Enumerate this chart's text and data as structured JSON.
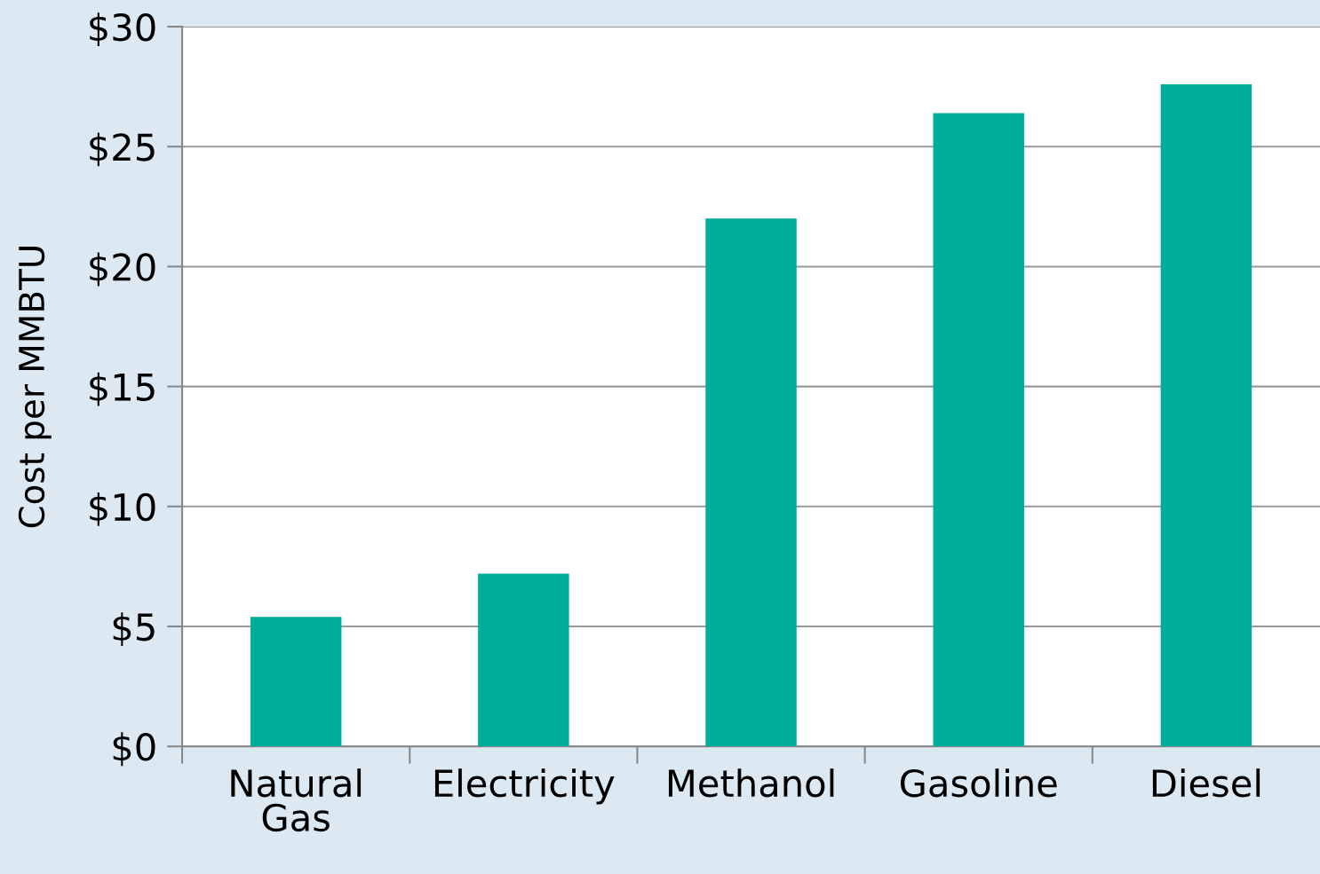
{
  "chart_data": {
    "type": "bar",
    "ylabel": "Cost per MMBTU",
    "categories": [
      "Natural\nGas",
      "Electricity",
      "Methanol",
      "Gasoline",
      "Diesel"
    ],
    "values": [
      5.4,
      7.2,
      22.0,
      26.4,
      27.6
    ],
    "color": "#00ad9c",
    "ylim": [
      0,
      30
    ],
    "yticks": [
      {
        "value": 0,
        "label": "$0"
      },
      {
        "value": 5,
        "label": "$5"
      },
      {
        "value": 10,
        "label": "$10"
      },
      {
        "value": 15,
        "label": "$15"
      },
      {
        "value": 20,
        "label": "$20"
      },
      {
        "value": 25,
        "label": "$25"
      },
      {
        "value": 30,
        "label": "$30"
      }
    ],
    "grid": "y"
  }
}
